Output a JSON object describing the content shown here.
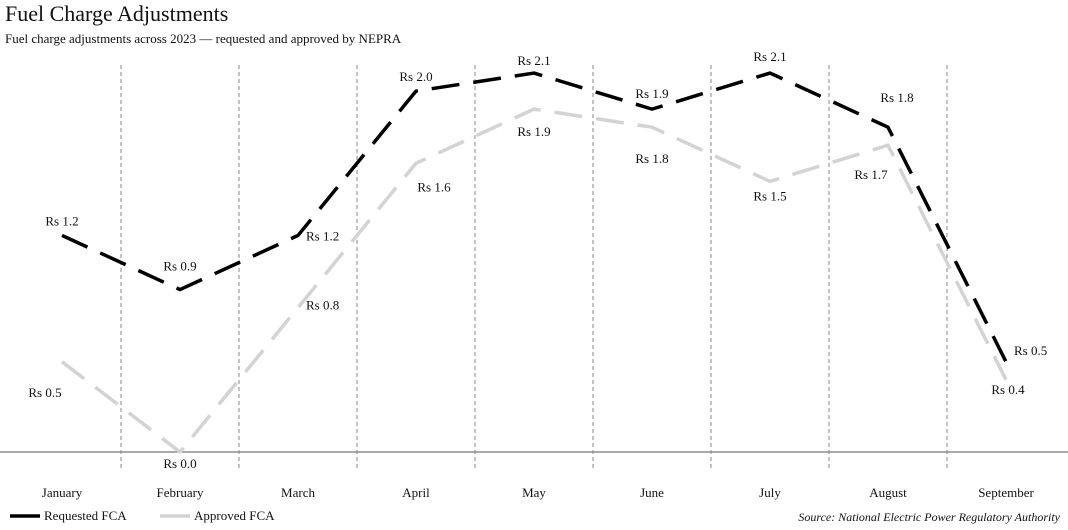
{
  "chart_data": {
    "type": "line",
    "title": "Fuel Charge Adjustments",
    "subtitle": "Fuel charge adjustments across 2023 — requested and approved by NEPRA",
    "source": "Source: National Electric Power Regulatory Authority",
    "categories": [
      "January",
      "February",
      "March",
      "April",
      "May",
      "June",
      "July",
      "August",
      "September"
    ],
    "ylim": [
      0,
      2.2
    ],
    "series": [
      {
        "name": "Requested FCA",
        "color": "#000000",
        "values": [
          1.2,
          0.9,
          1.2,
          2.0,
          2.1,
          1.9,
          2.1,
          1.8,
          0.5
        ],
        "value_labels": [
          "Rs 1.2",
          "Rs 0.9",
          "Rs 1.2",
          "Rs 2.0",
          "Rs 2.1",
          "Rs 1.9",
          "Rs 2.1",
          "Rs 1.8",
          "Rs 0.5"
        ]
      },
      {
        "name": "Approved FCA",
        "color": "#d3d3d3",
        "values": [
          0.5,
          0.0,
          0.8,
          1.6,
          1.9,
          1.8,
          1.5,
          1.7,
          0.4
        ],
        "value_labels": [
          "Rs 0.5",
          "Rs 0.0",
          "Rs 0.8",
          "Rs 1.6",
          "Rs 1.9",
          "Rs 1.8",
          "Rs 1.5",
          "Rs 1.7",
          "Rs 0.4"
        ]
      }
    ]
  }
}
